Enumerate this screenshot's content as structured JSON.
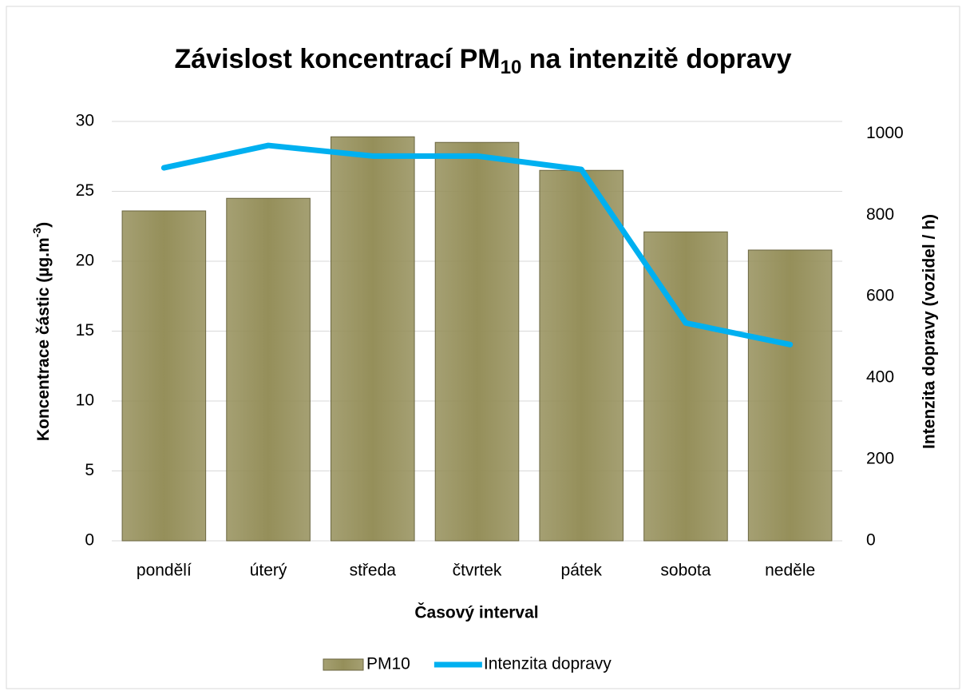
{
  "chart_data": {
    "type": "bar-line",
    "title": [
      "Závislost koncentrací PM",
      "10",
      " na intenzitě dopravy"
    ],
    "x_label": "Časový interval",
    "y_label": [
      "Koncentrace částic (µg.m",
      "-3",
      ")"
    ],
    "y2_label": "Intenzita dopravy (vozidel / h)",
    "categories": [
      "pondělí",
      "úterý",
      "středa",
      "čtvrtek",
      "pátek",
      "sobota",
      "neděle"
    ],
    "series": [
      {
        "name": "PM10",
        "type": "bar",
        "color": "#958f5a",
        "values": [
          23.6,
          24.5,
          28.9,
          28.5,
          26.5,
          22.1,
          20.8
        ]
      },
      {
        "name": "Intenzita dopravy",
        "type": "line",
        "axis": "y2",
        "color": "#00b0f0",
        "values": [
          916,
          971,
          945,
          945,
          912,
          535,
          482
        ]
      }
    ],
    "ylim": [
      0,
      30
    ],
    "yticks": [
      0,
      5,
      10,
      15,
      20,
      25,
      30
    ],
    "y2lim": [
      0,
      1030
    ],
    "y2ticks": [
      0,
      200,
      400,
      600,
      800,
      1000
    ],
    "grid": true,
    "legend": "bottom"
  }
}
